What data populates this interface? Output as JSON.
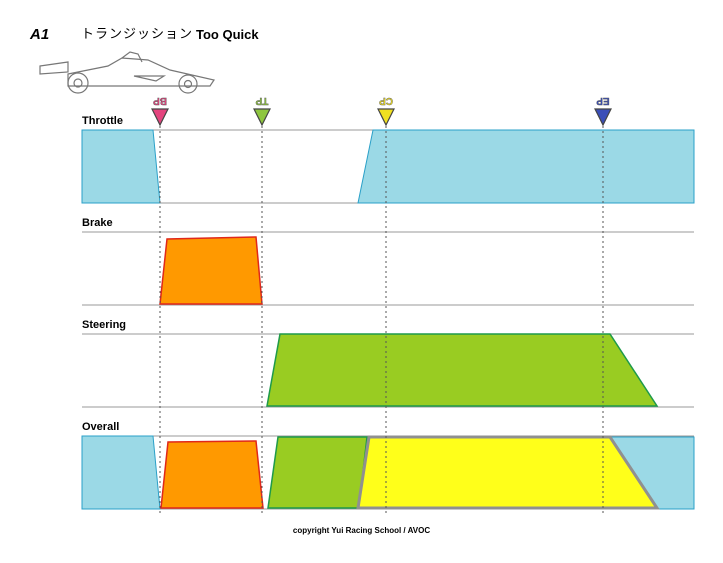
{
  "header": {
    "id": "A1",
    "title_jp": "トランジッション",
    "title": "Too Quick"
  },
  "tracks": {
    "throttle": "Throttle",
    "brake": "Brake",
    "steering": "Steering",
    "overall": "Overall"
  },
  "markers": [
    {
      "label": "BP",
      "color": "#e4447e"
    },
    {
      "label": "TP",
      "color": "#8ec63f"
    },
    {
      "label": "CP",
      "color": "#f0e020"
    },
    {
      "label": "EP",
      "color": "#3a4eb8"
    }
  ],
  "colors": {
    "throttle": "#9bd9e6",
    "throttle_border": "#2aa0c8",
    "brake": "#ff9900",
    "brake_border": "#e0281a",
    "steering": "#99cc22",
    "steering_border": "#1e9a4a",
    "overall_yellow": "#ffff1a",
    "overall_border": "#909090"
  },
  "copyright": "copyright  Yui Racing School / AVOC"
}
